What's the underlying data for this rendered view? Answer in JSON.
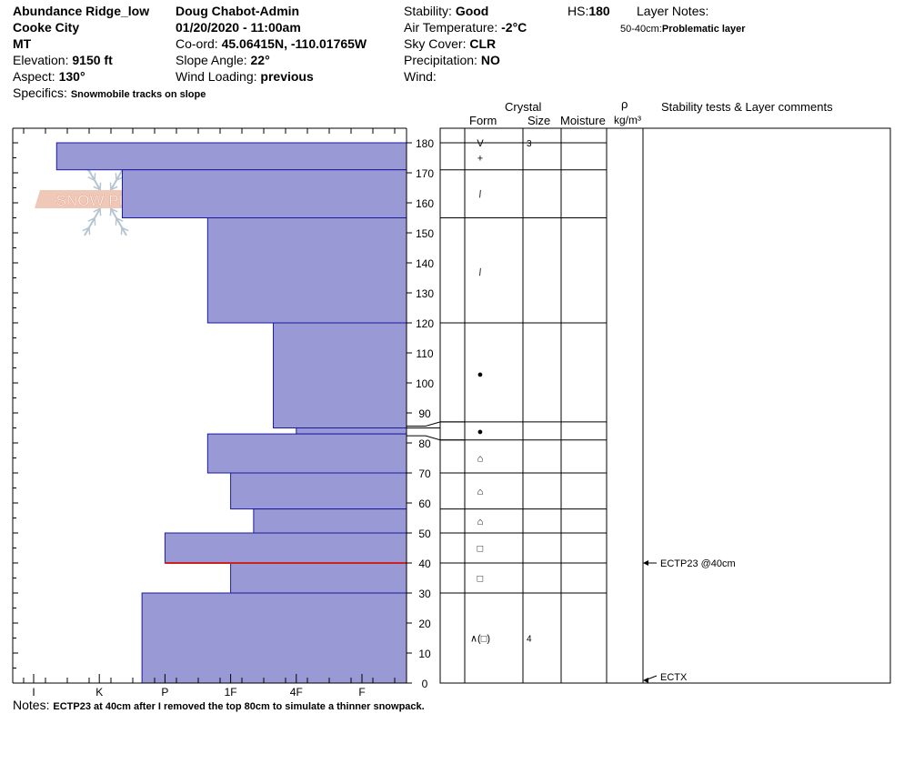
{
  "header": {
    "location": "Abundance Ridge_low",
    "area": "Cooke City",
    "state": "MT",
    "elevation_label": "Elevation:",
    "elevation": "9150 ft",
    "aspect_label": "Aspect:",
    "aspect": "130°",
    "specifics_label": "Specifics:",
    "specifics": "Snowmobile tracks on slope",
    "observer": "Doug Chabot-Admin",
    "datetime": "01/20/2020 - 11:00am",
    "coord_label": "Co-ord:",
    "coord": "45.06415N, -110.01765W",
    "slope_label": "Slope Angle:",
    "slope": "22°",
    "wind_loading_label": "Wind Loading:",
    "wind_loading": "previous",
    "stability_label": "Stability:",
    "stability": "Good",
    "air_temp_label": "Air Temperature:",
    "air_temp": "-2°C",
    "sky_label": "Sky Cover:",
    "sky": "CLR",
    "precip_label": "Precipitation:",
    "precip": "NO",
    "wind_label": "Wind:",
    "hs_label": "HS:",
    "hs": "180",
    "layer_notes_label": "Layer Notes:",
    "layer_note_range": "50-40cm:",
    "layer_note_text": "Problematic layer"
  },
  "columns": {
    "crystal": "Crystal",
    "form": "Form",
    "size": "Size",
    "moisture": "Moisture",
    "rho": "ρ",
    "density_unit": "kg/m³",
    "stability": "Stability tests & Layer comments"
  },
  "logo_text": "SNOW PILOT",
  "notes_label": "Notes:",
  "notes": "ECTP23 at 40cm after I removed the top 80cm to simulate a thinner snowpack.",
  "colors": {
    "layer_fill": "#9999d6",
    "layer_edge": "#1a1aa0",
    "problem_line": "#cc2222",
    "logo": "#f0c8b8",
    "logo_flake": "#b4c4d0"
  },
  "chart_data": {
    "type": "bar",
    "orientation": "horizontal",
    "hardness_scale": [
      "I",
      "K",
      "P",
      "1F",
      "4F",
      "F"
    ],
    "height_axis": {
      "min": 0,
      "max": 180,
      "ticks": [
        0,
        10,
        20,
        30,
        40,
        50,
        60,
        70,
        80,
        90,
        100,
        110,
        120,
        130,
        140,
        150,
        160,
        170,
        180
      ]
    },
    "layers": [
      {
        "top": 180,
        "bottom": 171,
        "hardness": 0.35
      },
      {
        "top": 171,
        "bottom": 155,
        "hardness": 1.35
      },
      {
        "top": 155,
        "bottom": 120,
        "hardness": 2.65
      },
      {
        "top": 120,
        "bottom": 85,
        "hardness": 3.65
      },
      {
        "top": 85,
        "bottom": 83,
        "hardness": 4.0
      },
      {
        "top": 83,
        "bottom": 70,
        "hardness": 2.65
      },
      {
        "top": 70,
        "bottom": 58,
        "hardness": 3.0
      },
      {
        "top": 58,
        "bottom": 50,
        "hardness": 3.35
      },
      {
        "top": 50,
        "bottom": 40,
        "hardness": 2.0
      },
      {
        "top": 40,
        "bottom": 30,
        "hardness": 3.0
      },
      {
        "top": 30,
        "bottom": 0,
        "hardness": 1.65
      }
    ],
    "problem_layer_height": 40,
    "crystal_rows": [
      {
        "top": 180,
        "bottom": 180,
        "form": "V",
        "size": "3",
        "sym_h": 180
      },
      {
        "top": 180,
        "bottom": 171,
        "form": "+",
        "size": "",
        "sym_h": 175
      },
      {
        "top": 171,
        "bottom": 155,
        "form": "/",
        "size": "",
        "sym_h": 163
      },
      {
        "top": 155,
        "bottom": 120,
        "form": "/",
        "size": "",
        "sym_h": 137
      },
      {
        "top": 120,
        "bottom": 87,
        "form": "●",
        "size": "",
        "sym_h": 103
      },
      {
        "top": 87,
        "bottom": 81,
        "form": "●",
        "size": "",
        "sym_h": 84
      },
      {
        "top": 81,
        "bottom": 70,
        "form": "⌂",
        "size": "",
        "sym_h": 75
      },
      {
        "top": 70,
        "bottom": 58,
        "form": "⌂",
        "size": "",
        "sym_h": 64
      },
      {
        "top": 58,
        "bottom": 50,
        "form": "⌂",
        "size": "",
        "sym_h": 54
      },
      {
        "top": 50,
        "bottom": 40,
        "form": "□",
        "size": "",
        "sym_h": 45
      },
      {
        "top": 40,
        "bottom": 30,
        "form": "□",
        "size": "",
        "sym_h": 35
      },
      {
        "top": 30,
        "bottom": 0,
        "form": "∧(□)",
        "size": "4",
        "sym_h": 15
      }
    ],
    "stability_tests": [
      {
        "height": 40,
        "label": "ECTP23 @40cm"
      },
      {
        "height": 0,
        "label": "ECTX"
      }
    ]
  }
}
